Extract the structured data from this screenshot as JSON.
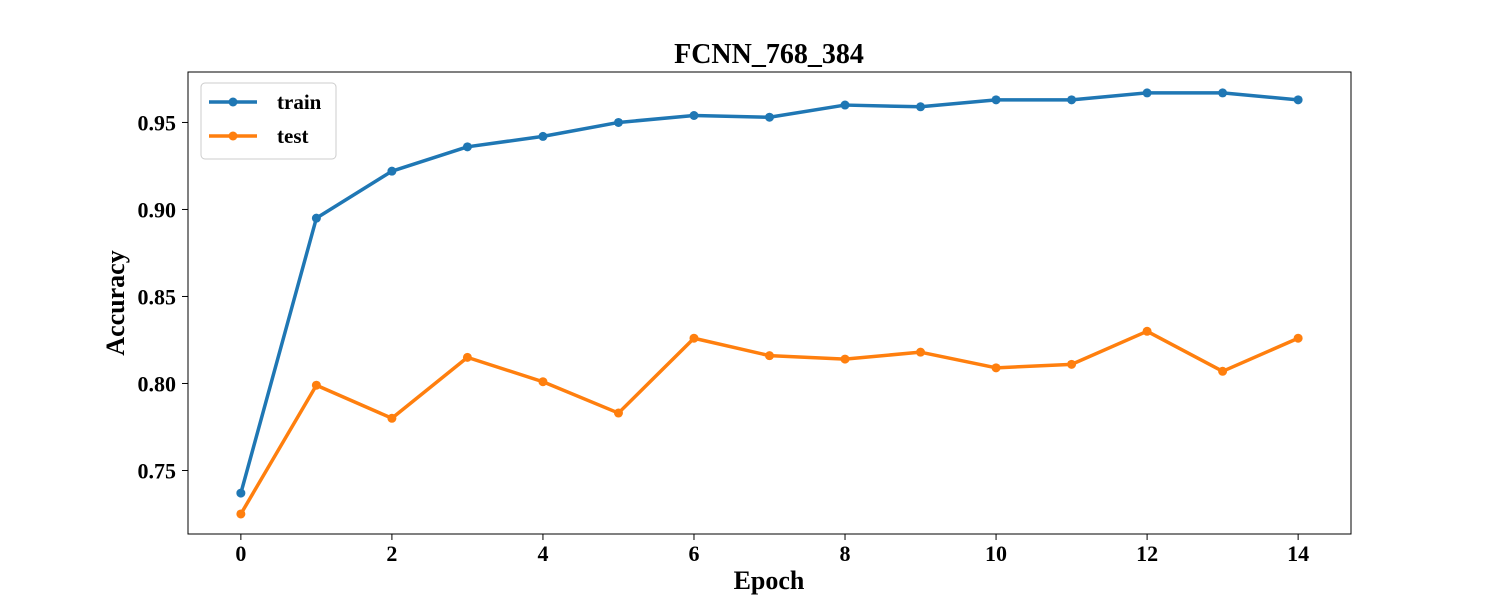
{
  "chart_data": {
    "type": "line",
    "title": "FCNN_768_384",
    "xlabel": "Epoch",
    "ylabel": "Accuracy",
    "xlim": [
      -0.7,
      14.7
    ],
    "ylim": [
      0.7135,
      0.979
    ],
    "x": [
      0,
      1,
      2,
      3,
      4,
      5,
      6,
      7,
      8,
      9,
      10,
      11,
      12,
      13,
      14
    ],
    "x_ticks": [
      0,
      2,
      4,
      6,
      8,
      10,
      12,
      14
    ],
    "x_tick_labels": [
      "0",
      "2",
      "4",
      "6",
      "8",
      "10",
      "12",
      "14"
    ],
    "y_ticks": [
      0.75,
      0.8,
      0.85,
      0.9,
      0.95
    ],
    "y_tick_labels": [
      "0.75",
      "0.80",
      "0.85",
      "0.90",
      "0.95"
    ],
    "grid": false,
    "legend_position": "top-left",
    "series": [
      {
        "name": "train",
        "color": "#1f77b4",
        "values": [
          0.737,
          0.895,
          0.922,
          0.936,
          0.942,
          0.95,
          0.954,
          0.953,
          0.96,
          0.959,
          0.963,
          0.963,
          0.967,
          0.967,
          0.963
        ]
      },
      {
        "name": "test",
        "color": "#ff7f0e",
        "values": [
          0.725,
          0.799,
          0.78,
          0.815,
          0.801,
          0.783,
          0.826,
          0.816,
          0.814,
          0.818,
          0.809,
          0.811,
          0.83,
          0.807,
          0.826
        ]
      }
    ]
  }
}
